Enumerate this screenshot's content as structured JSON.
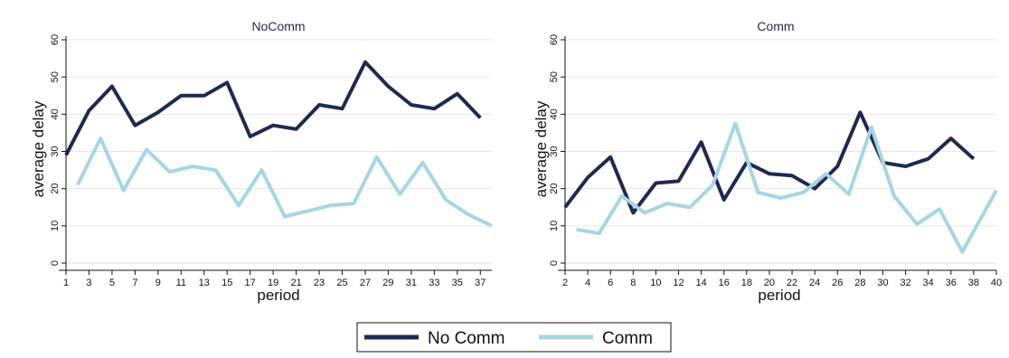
{
  "chart_data": [
    {
      "type": "line",
      "title": "NoComm",
      "xlabel": "period",
      "ylabel": "average delay",
      "xlim": [
        1,
        38
      ],
      "ylim": [
        0,
        60
      ],
      "x_tick_labels": [
        "1",
        "3",
        "5",
        "7",
        "9",
        "11",
        "13",
        "15",
        "17",
        "19",
        "21",
        "23",
        "25",
        "27",
        "29",
        "31",
        "33",
        "35",
        "37"
      ],
      "y_tick_labels": [
        "0",
        "10",
        "20",
        "30",
        "40",
        "50",
        "60"
      ],
      "series": [
        {
          "name": "No Comm",
          "color": "#1e2a4f",
          "x": [
            1,
            3,
            5,
            7,
            9,
            11,
            13,
            15,
            17,
            19,
            21,
            23,
            25,
            27,
            29,
            31,
            33,
            35,
            37
          ],
          "y": [
            29,
            41,
            47.5,
            37,
            40.5,
            45,
            45,
            48.5,
            34,
            37,
            36,
            42.5,
            41.5,
            54,
            47.5,
            42.5,
            41.5,
            45.5,
            39
          ]
        },
        {
          "name": "Comm",
          "color": "#a8d5e3",
          "x": [
            2,
            4,
            6,
            8,
            10,
            12,
            14,
            16,
            18,
            20,
            22,
            24,
            26,
            28,
            30,
            32,
            34,
            36,
            38
          ],
          "y": [
            21,
            33.5,
            19.5,
            30.5,
            24.5,
            26,
            25,
            15.5,
            25,
            12.5,
            14,
            15.5,
            16,
            28.5,
            18.5,
            27,
            17,
            13,
            10
          ]
        }
      ]
    },
    {
      "type": "line",
      "title": "Comm",
      "xlabel": "period",
      "ylabel": "average delay",
      "xlim": [
        2,
        40
      ],
      "ylim": [
        0,
        60
      ],
      "x_tick_labels": [
        "2",
        "4",
        "6",
        "8",
        "10",
        "12",
        "14",
        "16",
        "18",
        "20",
        "22",
        "24",
        "26",
        "28",
        "30",
        "32",
        "34",
        "36",
        "38",
        "40"
      ],
      "y_tick_labels": [
        "0",
        "10",
        "20",
        "30",
        "40",
        "50",
        "60"
      ],
      "series": [
        {
          "name": "No Comm",
          "color": "#1e2a4f",
          "x": [
            2,
            4,
            6,
            8,
            10,
            12,
            14,
            16,
            18,
            20,
            22,
            24,
            26,
            28,
            30,
            32,
            34,
            36,
            38
          ],
          "y": [
            15,
            23,
            28.5,
            13.5,
            21.5,
            22,
            32.5,
            17,
            27,
            24,
            23.5,
            20,
            26,
            40.5,
            27,
            26,
            28,
            33.5,
            28
          ]
        },
        {
          "name": "Comm",
          "color": "#a8d5e3",
          "x": [
            3,
            5,
            7,
            9,
            11,
            13,
            15,
            17,
            19,
            21,
            23,
            25,
            27,
            29,
            31,
            33,
            35,
            37,
            39,
            40
          ],
          "y": [
            9,
            8,
            18,
            13.5,
            16,
            15,
            21,
            37.5,
            19,
            17.5,
            19,
            24,
            18.5,
            36.5,
            18,
            10.5,
            14.5,
            3,
            14,
            19.5
          ]
        }
      ]
    }
  ],
  "legend": {
    "placement": "bottom-center",
    "items": [
      {
        "label": "No Comm",
        "color": "#1e2a4f"
      },
      {
        "label": "Comm",
        "color": "#a8d5e3"
      }
    ]
  }
}
